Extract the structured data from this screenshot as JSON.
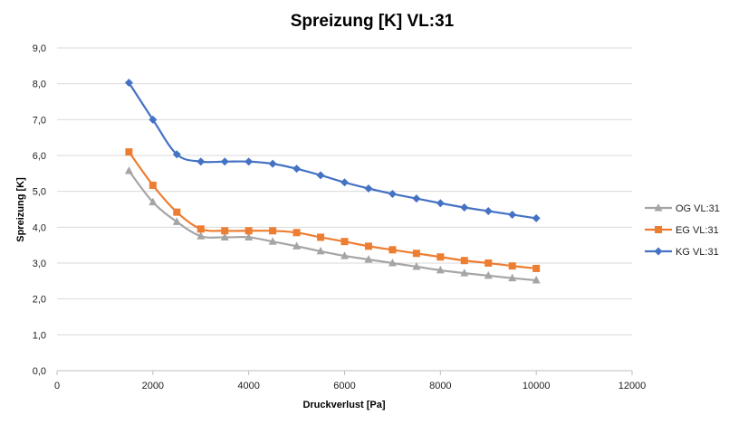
{
  "chart_data": {
    "type": "line",
    "title": "Spreizung  [K] VL:31",
    "xlabel": "Druckverlust [Pa]",
    "ylabel": "Spreizung  [K]",
    "xlim": [
      0,
      12000
    ],
    "ylim": [
      0,
      9
    ],
    "x_ticks": [
      0,
      2000,
      4000,
      6000,
      8000,
      10000,
      12000
    ],
    "x_tick_labels": [
      "0",
      "2000",
      "4000",
      "6000",
      "8000",
      "10000",
      "12000"
    ],
    "y_ticks": [
      0,
      1,
      2,
      3,
      4,
      5,
      6,
      7,
      8,
      9
    ],
    "y_tick_labels": [
      "0,0",
      "1,0",
      "2,0",
      "3,0",
      "4,0",
      "5,0",
      "6,0",
      "7,0",
      "8,0",
      "9,0"
    ],
    "grid": "horizontal",
    "legend_position": "right",
    "x": [
      1500,
      2000,
      2500,
      3000,
      3500,
      4000,
      4500,
      5000,
      5500,
      6000,
      6500,
      7000,
      7500,
      8000,
      8500,
      9000,
      9500,
      10000
    ],
    "series": [
      {
        "name": "OG VL:31",
        "color": "#a5a5a5",
        "marker": "triangle",
        "values": [
          5.57,
          4.7,
          4.15,
          3.75,
          3.72,
          3.72,
          3.6,
          3.47,
          3.33,
          3.2,
          3.1,
          3.0,
          2.9,
          2.8,
          2.72,
          2.65,
          2.58,
          2.52
        ]
      },
      {
        "name": "EG VL:31",
        "color": "#ed7d31",
        "marker": "square",
        "values": [
          6.1,
          5.17,
          4.42,
          3.95,
          3.9,
          3.9,
          3.9,
          3.85,
          3.72,
          3.6,
          3.47,
          3.37,
          3.27,
          3.17,
          3.07,
          3.0,
          2.92,
          2.85
        ]
      },
      {
        "name": "KG VL:31",
        "color": "#4472c4",
        "marker": "diamond",
        "values": [
          8.03,
          7.0,
          6.03,
          5.83,
          5.83,
          5.83,
          5.77,
          5.63,
          5.45,
          5.25,
          5.08,
          4.93,
          4.8,
          4.67,
          4.55,
          4.45,
          4.35,
          4.25
        ]
      }
    ]
  }
}
